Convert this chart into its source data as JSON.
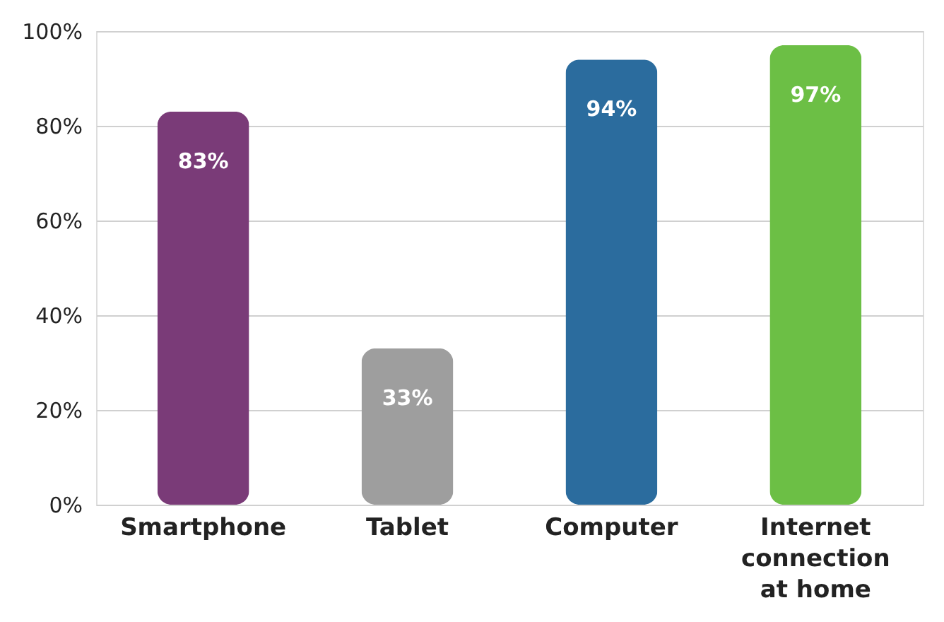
{
  "chart_data": {
    "type": "bar",
    "categories": [
      "Smartphone",
      "Tablet",
      "Computer",
      "Internet connection at home"
    ],
    "values": [
      83,
      33,
      94,
      97
    ],
    "colors": [
      "#7a3b78",
      "#9e9e9e",
      "#2b6c9e",
      "#6cbf45"
    ],
    "value_labels": [
      "83%",
      "33%",
      "94%",
      "97%"
    ],
    "ylim": [
      0,
      100
    ],
    "yticks": [
      {
        "value": 0,
        "label": "0%"
      },
      {
        "value": 20,
        "label": "20%"
      },
      {
        "value": 40,
        "label": "40%"
      },
      {
        "value": 60,
        "label": "60%"
      },
      {
        "value": 80,
        "label": "80%"
      },
      {
        "value": 100,
        "label": "100%"
      }
    ],
    "grid": "y"
  }
}
